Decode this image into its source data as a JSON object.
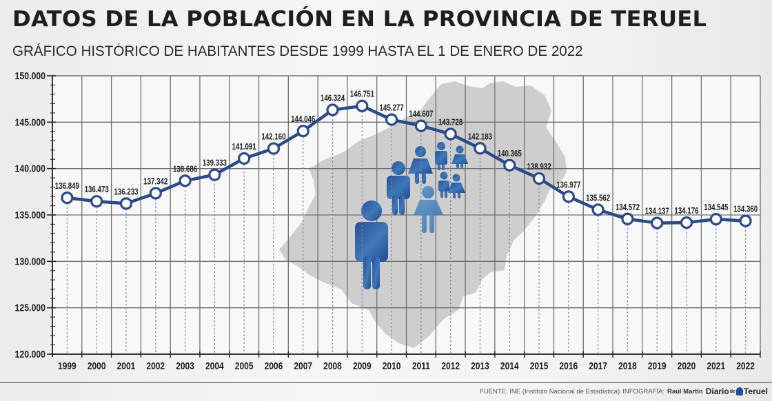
{
  "header": {
    "title": "DATOS DE LA POBLACIÓN EN LA PROVINCIA DE TERUEL",
    "subtitle": "GRÁFICO HISTÓRICO DE HABITANTES DESDE 1999 HASTA EL 1 DE ENERO DE 2022"
  },
  "footer": {
    "source": "FUENTE: INE (Instituto Nacional de Estadística)",
    "infographic_label": "INFOGRAFÍA:",
    "author": "Raúl Martín",
    "logo_part1": "Diario",
    "logo_de": "de",
    "logo_part2": "Teruel"
  },
  "colors": {
    "line": "#2b4a87",
    "marker_fill": "#ffffff",
    "grid": "#6e6e6e",
    "map": "#c6c6c6",
    "figure": "#2e5aa3"
  },
  "chart_data": {
    "type": "line",
    "title": "DATOS DE LA POBLACIÓN EN LA PROVINCIA DE TERUEL",
    "subtitle": "GRÁFICO HISTÓRICO DE HABITANTES DESDE 1999 HASTA EL 1 DE ENERO DE 2022",
    "xlabel": "",
    "ylabel": "",
    "ylim": [
      120000,
      150000
    ],
    "y_ticks": [
      120000,
      125000,
      130000,
      135000,
      140000,
      145000,
      150000
    ],
    "y_tick_labels": [
      "120.000",
      "125.000",
      "130.000",
      "135.000",
      "140.000",
      "145.000",
      "150.000"
    ],
    "y_minor_step": 1000,
    "grid": true,
    "legend": "none",
    "categories": [
      "1999",
      "2000",
      "2001",
      "2002",
      "2003",
      "2004",
      "2005",
      "2006",
      "2007",
      "2008",
      "2009",
      "2010",
      "2011",
      "2012",
      "2013",
      "2014",
      "2015",
      "2016",
      "2017",
      "2018",
      "2019",
      "2020",
      "2021",
      "2022"
    ],
    "series": [
      {
        "name": "Habitantes",
        "values": [
          136849,
          136473,
          136233,
          137342,
          138686,
          139333,
          141091,
          142160,
          144046,
          146324,
          146751,
          145277,
          144607,
          143728,
          142183,
          140365,
          138932,
          136977,
          135562,
          134572,
          134137,
          134176,
          134545,
          134360
        ],
        "labels": [
          "136.849",
          "136.473",
          "136.233",
          "137.342",
          "138.686",
          "139.333",
          "141.091",
          "142.160",
          "144.046",
          "146.324",
          "146.751",
          "145.277",
          "144.607",
          "143.728",
          "142.183",
          "140.365",
          "138.932",
          "136.977",
          "135.562",
          "134.572",
          "134.137",
          "134.176",
          "134.545",
          "134.360"
        ]
      }
    ]
  }
}
